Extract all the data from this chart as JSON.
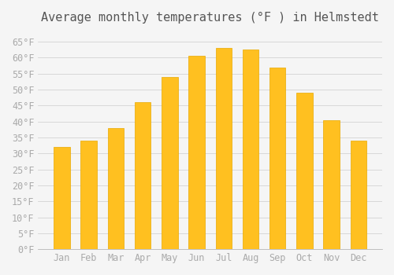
{
  "title": "Average monthly temperatures (°F ) in Helmstedt",
  "months": [
    "Jan",
    "Feb",
    "Mar",
    "Apr",
    "May",
    "Jun",
    "Jul",
    "Aug",
    "Sep",
    "Oct",
    "Nov",
    "Dec"
  ],
  "values": [
    32,
    34,
    38,
    46,
    54,
    60.5,
    63,
    62.5,
    57,
    49,
    40.5,
    34
  ],
  "bar_color": "#FFC020",
  "bar_edge_color": "#E8A800",
  "background_color": "#F5F5F5",
  "grid_color": "#CCCCCC",
  "text_color": "#AAAAAA",
  "title_color": "#555555",
  "ylim": [
    0,
    68
  ],
  "yticks": [
    0,
    5,
    10,
    15,
    20,
    25,
    30,
    35,
    40,
    45,
    50,
    55,
    60,
    65
  ],
  "ylabel_suffix": "°F",
  "title_fontsize": 11,
  "tick_fontsize": 8.5
}
